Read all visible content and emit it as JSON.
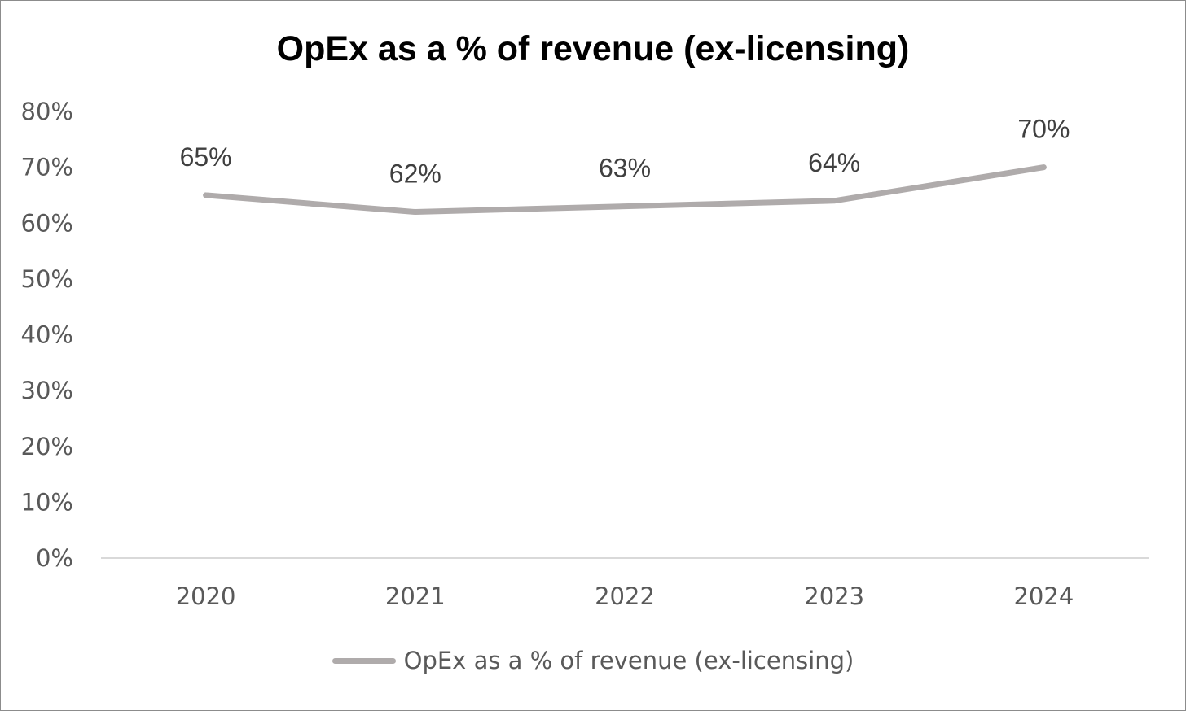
{
  "chart_data": {
    "type": "line",
    "title": "OpEx as a % of revenue (ex-licensing)",
    "xlabel": "",
    "ylabel": "",
    "categories": [
      "2020",
      "2021",
      "2022",
      "2023",
      "2024"
    ],
    "series": [
      {
        "name": "OpEx as a % of revenue (ex-licensing)",
        "values": [
          65,
          62,
          63,
          64,
          70
        ],
        "data_labels": [
          "65%",
          "62%",
          "63%",
          "64%",
          "70%"
        ],
        "color": "#afabab"
      }
    ],
    "ylim": [
      0,
      80
    ],
    "yticks": [
      0,
      10,
      20,
      30,
      40,
      50,
      60,
      70,
      80
    ],
    "ytick_labels": [
      "0%",
      "10%",
      "20%",
      "30%",
      "40%",
      "50%",
      "60%",
      "70%",
      "80%"
    ],
    "grid": false,
    "legend": "bottom"
  }
}
